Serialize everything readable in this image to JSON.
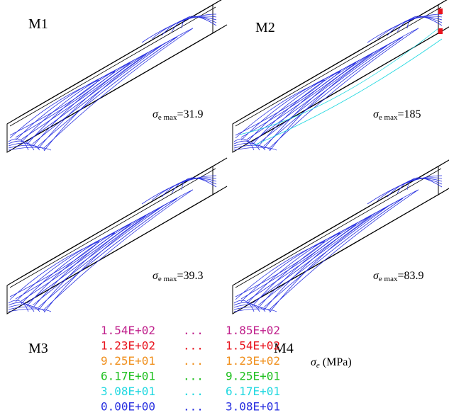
{
  "panels": [
    {
      "label": "M1",
      "symbol": "σ",
      "subscript": "e max",
      "value": "=31.9",
      "hot": false
    },
    {
      "label": "M2",
      "symbol": "σ",
      "subscript": "e max",
      "value": "=185",
      "hot": true
    },
    {
      "label": "M3",
      "symbol": "σ",
      "subscript": "e max",
      "value": "=39.3",
      "hot": false
    },
    {
      "label": "M4",
      "symbol": "σ",
      "subscript": "e max",
      "value": "=83.9",
      "hot": false
    }
  ],
  "legend": {
    "separator": "...",
    "rows": [
      {
        "from": "1.54E+02",
        "to": "1.85E+02",
        "color": "#c0208c"
      },
      {
        "from": "1.23E+02",
        "to": "1.54E+02",
        "color": "#e8141e"
      },
      {
        "from": "9.25E+01",
        "to": "1.23E+02",
        "color": "#f0901e"
      },
      {
        "from": "6.17E+01",
        "to": "9.25E+01",
        "color": "#20c020"
      },
      {
        "from": "3.08E+01",
        "to": "6.17E+01",
        "color": "#20d8e0"
      },
      {
        "from": "0.00E+00",
        "to": "3.08E+01",
        "color": "#2830e0"
      }
    ],
    "symbol": "σ",
    "subscript": "e",
    "unit": " (MPa)"
  }
}
